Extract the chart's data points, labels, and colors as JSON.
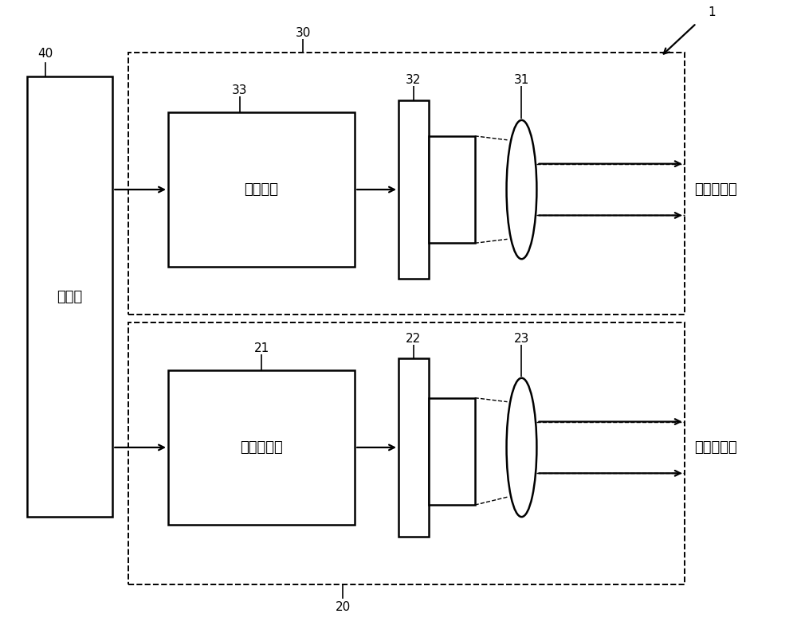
{
  "bg_color": "#ffffff",
  "fig_width": 10.0,
  "fig_height": 8.0,
  "dpi": 100,
  "label_1": "1",
  "label_20": "20",
  "label_21": "21",
  "label_22": "22",
  "label_23": "23",
  "label_30": "30",
  "label_31": "31",
  "label_32": "32",
  "label_33": "33",
  "label_40": "40",
  "text_ctrl": "控制部",
  "text_logic": "逻辑电路",
  "text_laser_drv": "激光驱动器",
  "text_reflected": "反射的激光",
  "text_radiated": "辐射的激光",
  "xlim": [
    0,
    10
  ],
  "ylim": [
    0,
    8
  ]
}
